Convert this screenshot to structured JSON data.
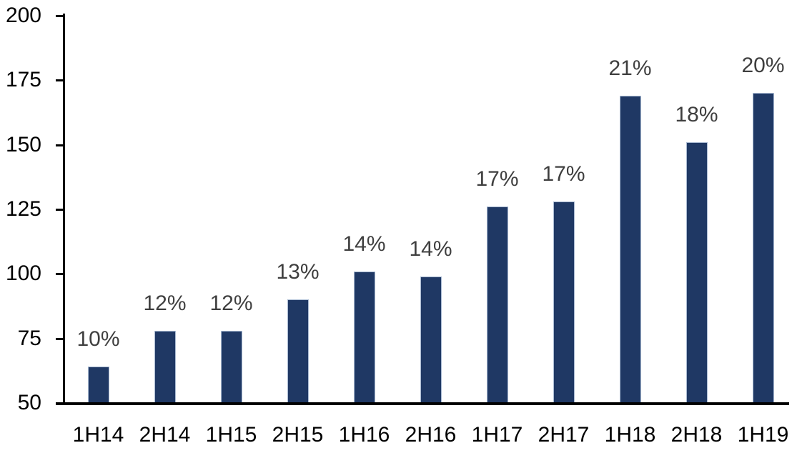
{
  "chart_data": {
    "type": "bar",
    "title": "",
    "xlabel": "",
    "ylabel": "",
    "categories": [
      "1H14",
      "2H14",
      "1H15",
      "2H15",
      "1H16",
      "2H16",
      "1H17",
      "2H17",
      "1H18",
      "2H18",
      "1H19"
    ],
    "values": [
      64,
      78,
      78,
      90,
      101,
      99,
      126,
      128,
      169,
      151,
      170
    ],
    "data_labels": [
      "10%",
      "12%",
      "12%",
      "13%",
      "14%",
      "14%",
      "17%",
      "17%",
      "21%",
      "18%",
      "20%"
    ],
    "ylim": [
      50,
      200
    ],
    "yticks": [
      200,
      175,
      150,
      125,
      100,
      75,
      50
    ],
    "grid": false,
    "legend_position": "none",
    "colors": {
      "bar_fill": "#1F3864",
      "bar_border": "#A9BAD2",
      "data_label": "#3F3F3F",
      "axis": "#000000",
      "axis_text": "#000000",
      "background": "#FFFFFF"
    }
  }
}
